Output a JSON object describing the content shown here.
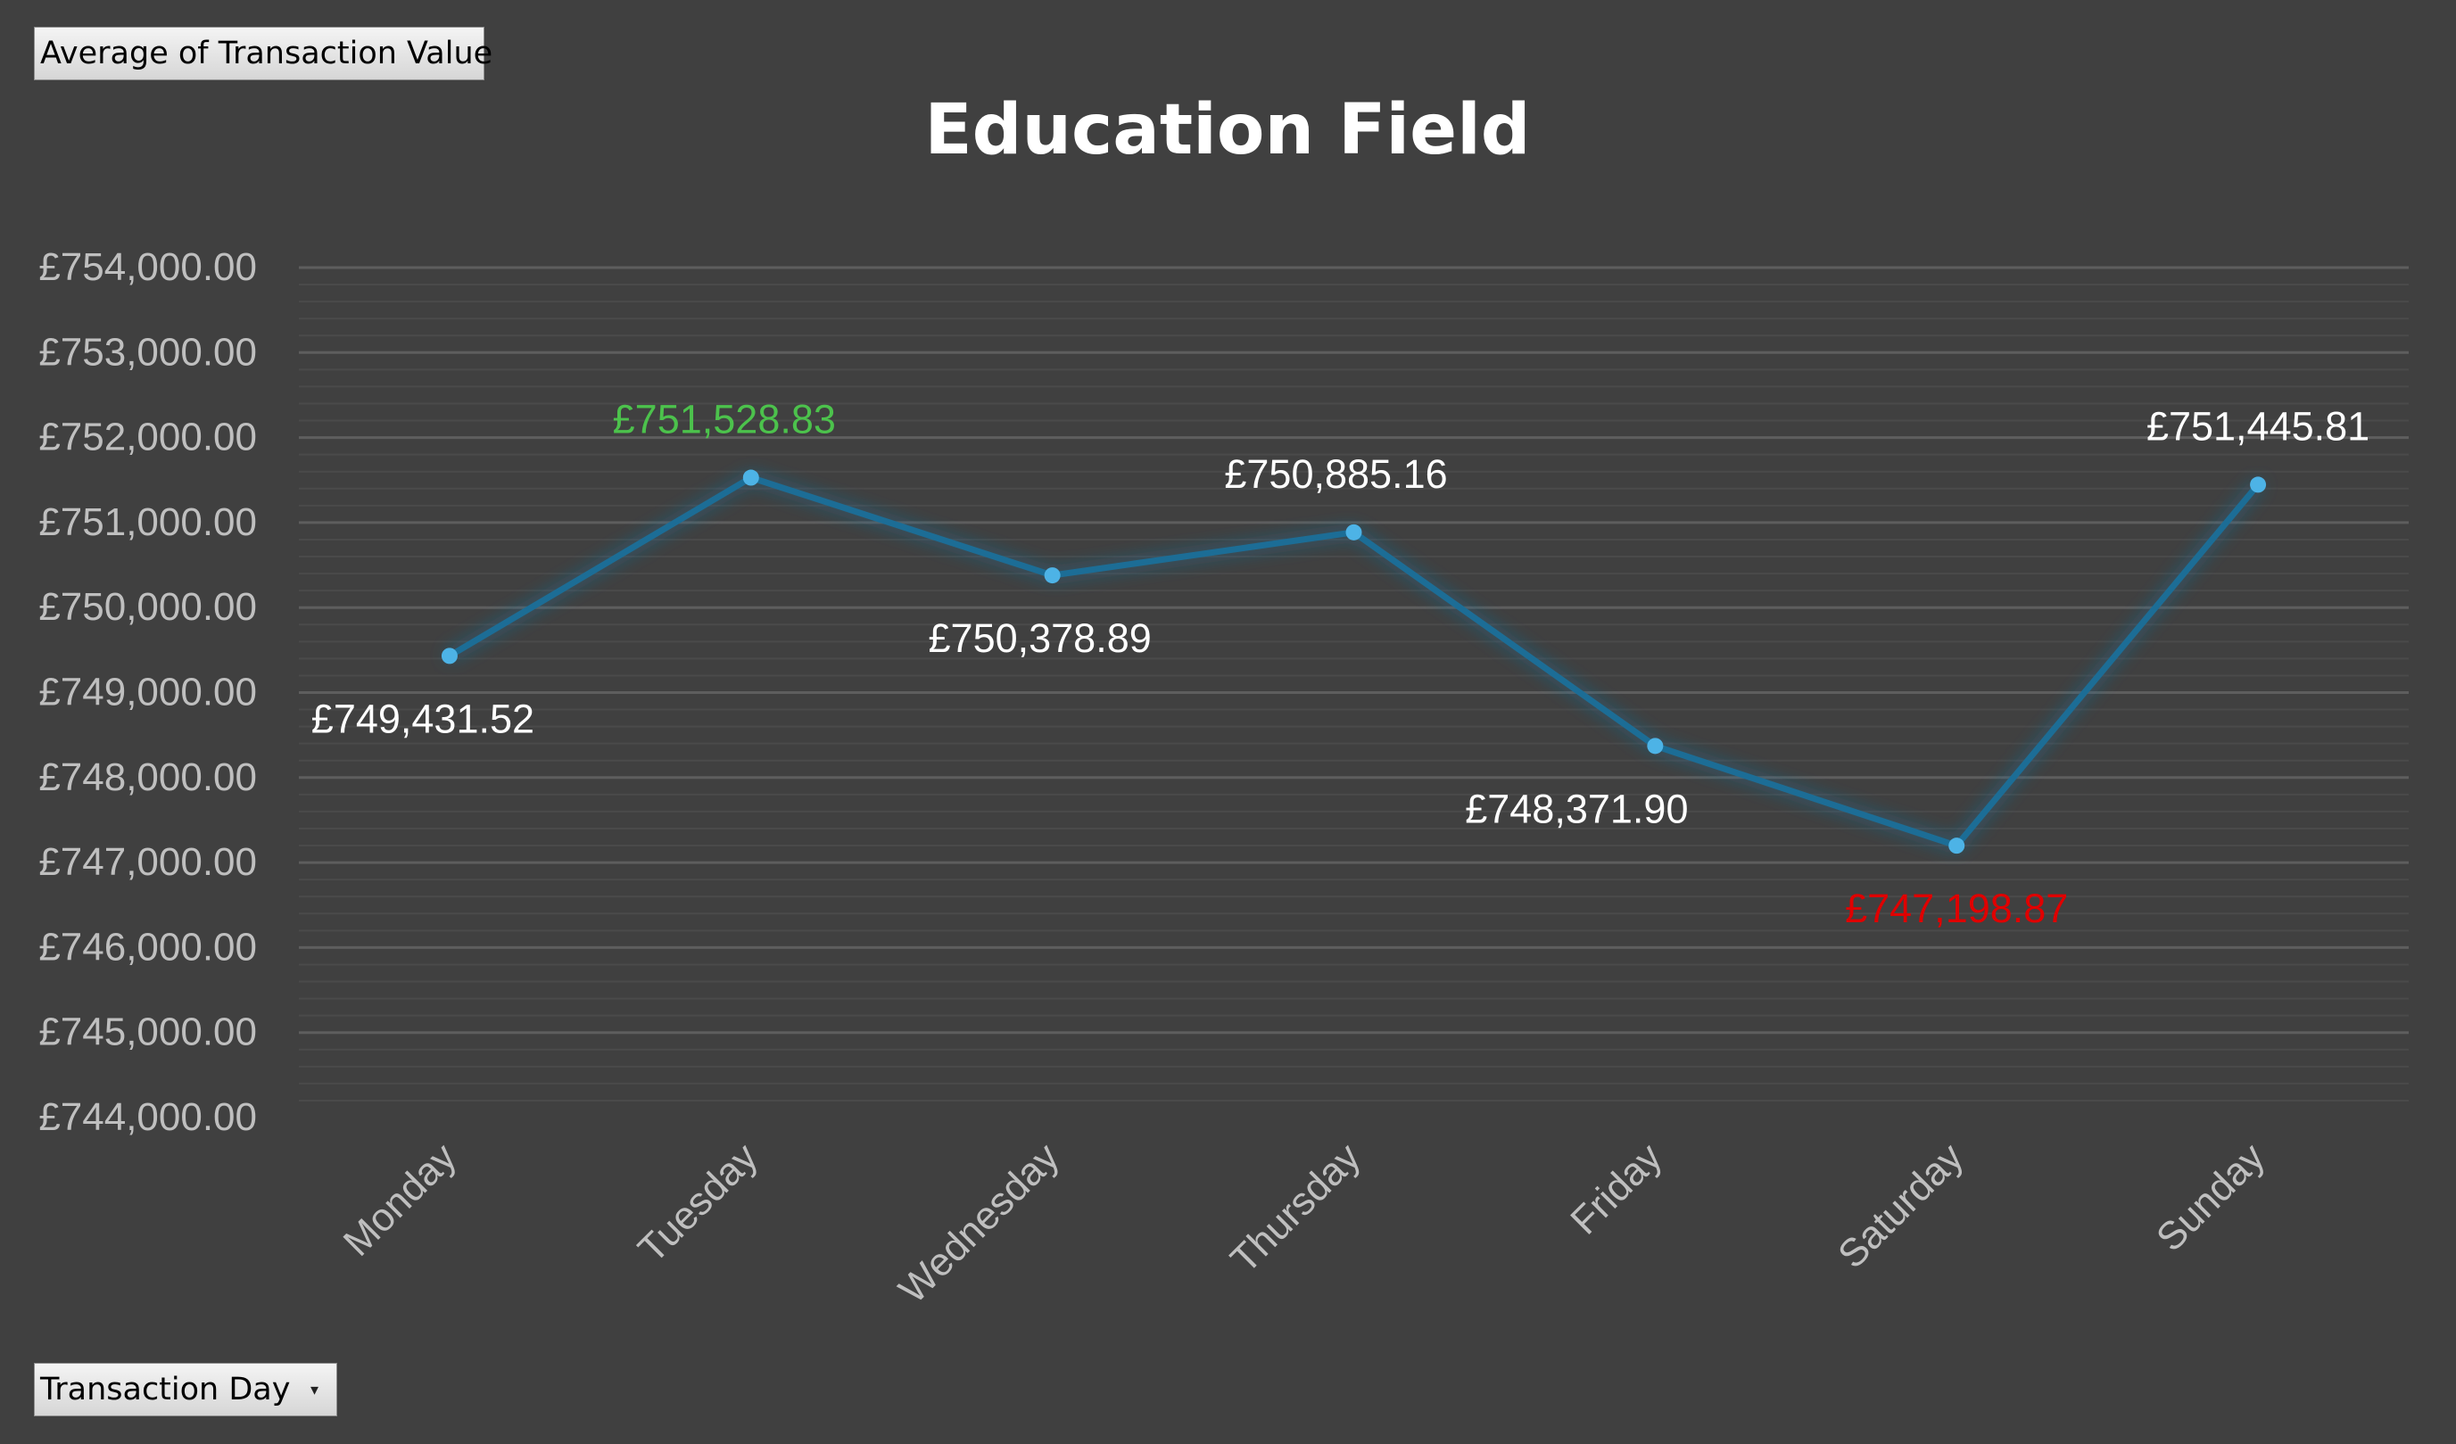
{
  "value_field_button": {
    "label": "Average of Transaction Value"
  },
  "axis_field_button": {
    "label": "Transaction Day",
    "icon": "dropdown-arrow-icon"
  },
  "colors": {
    "background": "#404040",
    "line": "#1f6d96",
    "marker": "#4db3e6",
    "max_label": "#4cc24c",
    "min_label": "#e00000",
    "text": "#ffffff",
    "tick_text": "#bfbfbf"
  },
  "chart_data": {
    "type": "line",
    "title": "Education Field",
    "xlabel": "",
    "ylabel": "",
    "categories": [
      "Monday",
      "Tuesday",
      "Wednesday",
      "Thursday",
      "Friday",
      "Saturday",
      "Sunday"
    ],
    "series": [
      {
        "values": [
          749431.52,
          751528.83,
          750378.89,
          750885.16,
          748371.9,
          747198.87,
          751445.81
        ],
        "data_labels": [
          "£749,431.52",
          "£751,528.83",
          "£750,378.89",
          "£750,885.16",
          "£748,371.90",
          "£747,198.87",
          "£751,445.81"
        ]
      }
    ],
    "ylim": [
      744000,
      754000
    ],
    "y_ticks": [
      754000,
      753000,
      752000,
      751000,
      750000,
      749000,
      748000,
      747000,
      746000,
      745000,
      744000
    ],
    "y_tick_labels": [
      "£754,000.00",
      "£753,000.00",
      "£752,000.00",
      "£751,000.00",
      "£750,000.00",
      "£749,000.00",
      "£748,000.00",
      "£747,000.00",
      "£746,000.00",
      "£745,000.00",
      "£744,000.00"
    ],
    "grid": true,
    "legend": "none",
    "highlight": {
      "max": "Tuesday",
      "min": "Saturday"
    }
  }
}
